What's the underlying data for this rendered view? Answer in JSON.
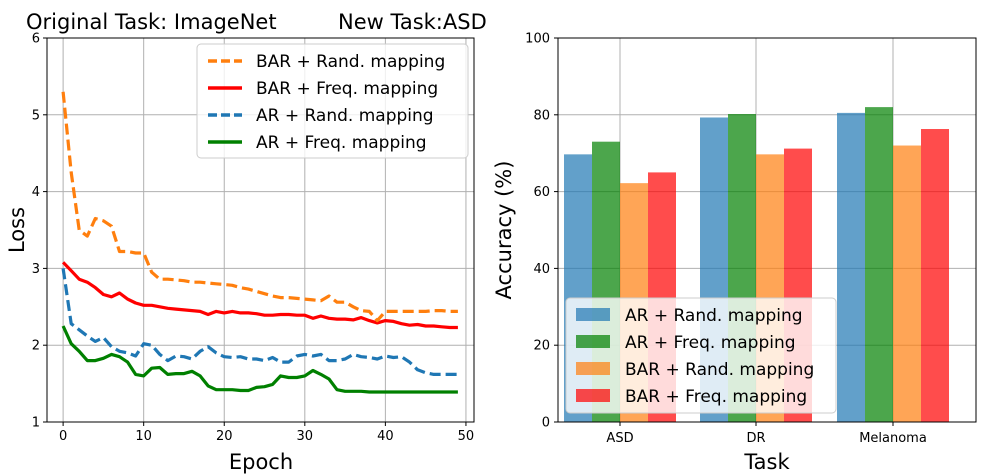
{
  "suptitle_left": "Original Task: ImageNet",
  "suptitle_right": "New Task:ASD",
  "colors": {
    "blue": "#1f77b4",
    "orange": "#ff7f0e",
    "green": "#2ca02c",
    "red": "#ff0000",
    "grid": "#b0b0b0"
  },
  "chart_data": [
    {
      "type": "line",
      "xlabel": "Epoch",
      "ylabel": "Loss",
      "xlim": [
        -2,
        51
      ],
      "ylim": [
        1,
        6
      ],
      "xticks": [
        0,
        10,
        20,
        30,
        40,
        50
      ],
      "yticks": [
        1,
        2,
        3,
        4,
        5,
        6
      ],
      "legend_position": "top-right",
      "series": [
        {
          "name": "BAR + Rand. mapping",
          "color": "#ff7f0e",
          "dash": true,
          "x": [
            0,
            1,
            2,
            3,
            4,
            5,
            6,
            7,
            8,
            9,
            10,
            11,
            12,
            13,
            14,
            15,
            16,
            17,
            18,
            19,
            20,
            21,
            22,
            23,
            24,
            25,
            26,
            27,
            28,
            29,
            30,
            31,
            32,
            33,
            34,
            35,
            36,
            37,
            38,
            39,
            40,
            41,
            42,
            43,
            44,
            45,
            46,
            47,
            48,
            49
          ],
          "y": [
            5.3,
            4.25,
            3.5,
            3.42,
            3.65,
            3.62,
            3.55,
            3.22,
            3.22,
            3.2,
            3.2,
            2.95,
            2.86,
            2.86,
            2.85,
            2.84,
            2.82,
            2.82,
            2.81,
            2.8,
            2.79,
            2.78,
            2.75,
            2.73,
            2.7,
            2.67,
            2.64,
            2.62,
            2.62,
            2.61,
            2.6,
            2.59,
            2.58,
            2.64,
            2.56,
            2.56,
            2.5,
            2.45,
            2.44,
            2.32,
            2.44,
            2.44,
            2.44,
            2.44,
            2.44,
            2.44,
            2.45,
            2.45,
            2.44,
            2.44
          ]
        },
        {
          "name": "BAR + Freq. mapping",
          "color": "#ff0000",
          "dash": false,
          "x": [
            0,
            1,
            2,
            3,
            4,
            5,
            6,
            7,
            8,
            9,
            10,
            11,
            12,
            13,
            14,
            15,
            16,
            17,
            18,
            19,
            20,
            21,
            22,
            23,
            24,
            25,
            26,
            27,
            28,
            29,
            30,
            31,
            32,
            33,
            34,
            35,
            36,
            37,
            38,
            39,
            40,
            41,
            42,
            43,
            44,
            45,
            46,
            47,
            48,
            49
          ],
          "y": [
            3.08,
            2.97,
            2.86,
            2.82,
            2.75,
            2.66,
            2.63,
            2.68,
            2.6,
            2.55,
            2.52,
            2.52,
            2.5,
            2.48,
            2.47,
            2.46,
            2.45,
            2.44,
            2.4,
            2.44,
            2.42,
            2.44,
            2.42,
            2.42,
            2.41,
            2.39,
            2.39,
            2.4,
            2.4,
            2.39,
            2.39,
            2.35,
            2.38,
            2.35,
            2.34,
            2.34,
            2.33,
            2.36,
            2.32,
            2.29,
            2.32,
            2.31,
            2.28,
            2.26,
            2.27,
            2.25,
            2.25,
            2.24,
            2.23,
            2.23
          ]
        },
        {
          "name": "AR + Rand. mapping",
          "color": "#1f77b4",
          "dash": true,
          "x": [
            0,
            1,
            2,
            3,
            4,
            5,
            6,
            7,
            8,
            9,
            10,
            11,
            12,
            13,
            14,
            15,
            16,
            17,
            18,
            19,
            20,
            21,
            22,
            23,
            24,
            25,
            26,
            27,
            28,
            29,
            30,
            31,
            32,
            33,
            34,
            35,
            36,
            37,
            38,
            39,
            40,
            41,
            42,
            43,
            44,
            45,
            46,
            47,
            48,
            49
          ],
          "y": [
            3.0,
            2.28,
            2.2,
            2.12,
            2.05,
            2.1,
            1.98,
            1.92,
            1.9,
            1.86,
            2.02,
            2.0,
            1.88,
            1.8,
            1.86,
            1.85,
            1.82,
            1.92,
            1.98,
            1.9,
            1.85,
            1.84,
            1.85,
            1.82,
            1.82,
            1.8,
            1.84,
            1.78,
            1.78,
            1.86,
            1.88,
            1.86,
            1.88,
            1.8,
            1.8,
            1.82,
            1.88,
            1.85,
            1.84,
            1.82,
            1.86,
            1.84,
            1.85,
            1.78,
            1.68,
            1.64,
            1.62,
            1.62,
            1.62,
            1.62
          ]
        },
        {
          "name": "AR + Freq. mapping",
          "color": "#008000",
          "dash": false,
          "x": [
            0,
            1,
            2,
            3,
            4,
            5,
            6,
            7,
            8,
            9,
            10,
            11,
            12,
            13,
            14,
            15,
            16,
            17,
            18,
            19,
            20,
            21,
            22,
            23,
            24,
            25,
            26,
            27,
            28,
            29,
            30,
            31,
            32,
            33,
            34,
            35,
            36,
            37,
            38,
            39,
            40,
            41,
            42,
            43,
            44,
            45,
            46,
            47,
            48,
            49
          ],
          "y": [
            2.25,
            2.02,
            1.92,
            1.8,
            1.8,
            1.83,
            1.88,
            1.85,
            1.78,
            1.62,
            1.6,
            1.7,
            1.71,
            1.62,
            1.63,
            1.63,
            1.66,
            1.6,
            1.47,
            1.42,
            1.42,
            1.42,
            1.41,
            1.41,
            1.45,
            1.46,
            1.49,
            1.6,
            1.58,
            1.58,
            1.6,
            1.67,
            1.62,
            1.56,
            1.42,
            1.4,
            1.4,
            1.4,
            1.39,
            1.39,
            1.39,
            1.39,
            1.39,
            1.39,
            1.39,
            1.39,
            1.39,
            1.39,
            1.39,
            1.39
          ]
        }
      ]
    },
    {
      "type": "bar",
      "xlabel": "Task",
      "ylabel": "Accuracy (%)",
      "ylim": [
        0,
        100
      ],
      "yticks": [
        0,
        20,
        40,
        60,
        80,
        100
      ],
      "categories": [
        "ASD",
        "DR",
        "Melanoma"
      ],
      "legend_position": "bottom-left",
      "series": [
        {
          "name": "AR + Rand. mapping",
          "color": "#1f77b4",
          "values": [
            69.7,
            79.3,
            80.5
          ]
        },
        {
          "name": "AR + Freq. mapping",
          "color": "#008000",
          "values": [
            73.0,
            80.2,
            82.0
          ]
        },
        {
          "name": "BAR + Rand. mapping",
          "color": "#ff7f0e",
          "values": [
            62.2,
            69.7,
            72.0
          ]
        },
        {
          "name": "BAR + Freq. mapping",
          "color": "#ff0000",
          "values": [
            65.0,
            71.2,
            76.3
          ]
        }
      ]
    }
  ]
}
